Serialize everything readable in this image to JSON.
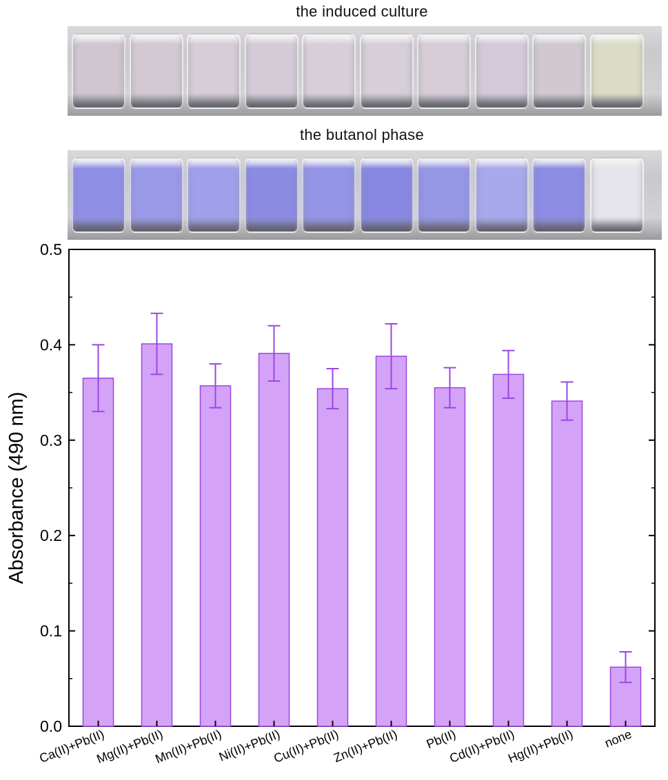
{
  "photos": {
    "top_title": "the induced culture",
    "bottom_title": "the butanol phase",
    "culture_vial_colors": [
      "#cfc6cf",
      "#d2c9d2",
      "#d6cdd6",
      "#d4cbd6",
      "#d7cfd8",
      "#d6ced8",
      "#d5ccd6",
      "#d3c9d8",
      "#d0c9d0",
      "#dcdcc6"
    ],
    "butanol_vial_colors": [
      "#8f8fe6",
      "#9a9ae8",
      "#a0a0ea",
      "#8b8be4",
      "#9494e6",
      "#8888e2",
      "#9696e6",
      "#a8a8ec",
      "#8c8ce4",
      "#e4e4ea"
    ]
  },
  "chart_data": {
    "type": "bar",
    "categories": [
      "Ca(II)+Pb(II)",
      "Mg(II)+Pb(II)",
      "Mn(II)+Pb(II)",
      "Ni(II)+Pb(II)",
      "Cu(II)+Pb(II)",
      "Zn(II)+Pb(II)",
      "Pb(II)",
      "Cd(II)+Pb(II)",
      "Hg(II)+Pb(II)",
      "none"
    ],
    "values": [
      0.365,
      0.401,
      0.357,
      0.391,
      0.354,
      0.388,
      0.355,
      0.369,
      0.341,
      0.062
    ],
    "errors": [
      0.035,
      0.032,
      0.023,
      0.029,
      0.021,
      0.034,
      0.021,
      0.025,
      0.02,
      0.016
    ],
    "ylabel": "Absorbance (490 nm)",
    "xlabel": "",
    "ylim": [
      0,
      0.5
    ],
    "yticks": [
      "0.0",
      "0.1",
      "0.2",
      "0.3",
      "0.4",
      "0.5"
    ],
    "grid": false,
    "bar_color": "#d4a3f7",
    "bar_edge_color": "#9b45e4",
    "error_color": "#9b45e4"
  }
}
